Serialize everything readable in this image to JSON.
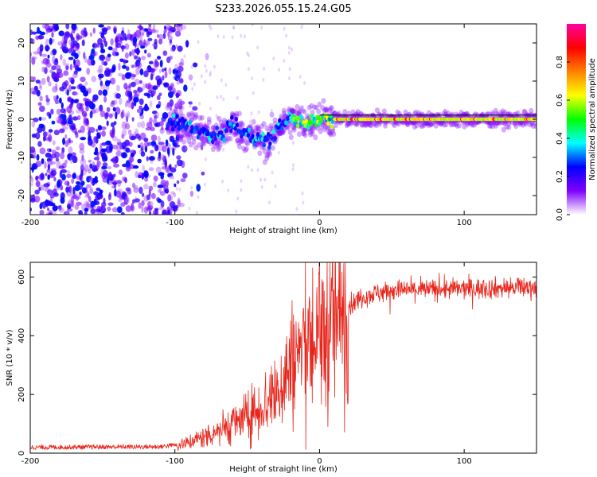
{
  "title": "S233.2026.055.15.24.G05",
  "chart_data": [
    {
      "type": "heatmap",
      "xlabel": "Height of straight line (km)",
      "ylabel": "Frequency (Hz)",
      "xlim": [
        -200,
        150
      ],
      "ylim": [
        -25,
        25
      ],
      "x_ticks": [
        -200,
        -100,
        0,
        100
      ],
      "y_ticks": [
        -20,
        -10,
        0,
        10,
        20
      ],
      "colorbar": {
        "label": "Normalized spectral amplitude",
        "range": [
          0,
          1
        ],
        "ticks": [
          "0.0",
          "0.2",
          "0.4",
          "0.6",
          "0.8"
        ],
        "tick_values": [
          0.0,
          0.2,
          0.4,
          0.6,
          0.8
        ],
        "colors": [
          "#ffffff",
          "#7f00ff",
          "#0000ff",
          "#00ffff",
          "#00ff00",
          "#ffff00",
          "#ff8000",
          "#ff0000",
          "#ff00a0"
        ]
      },
      "ridge": [
        {
          "x": -100,
          "y": -1
        },
        {
          "x": -90,
          "y": -2
        },
        {
          "x": -80,
          "y": -3.5
        },
        {
          "x": -70,
          "y": -5
        },
        {
          "x": -60,
          "y": -1
        },
        {
          "x": -55,
          "y": -3
        },
        {
          "x": -45,
          "y": -5
        },
        {
          "x": -35,
          "y": -6
        },
        {
          "x": -28,
          "y": -2
        },
        {
          "x": -20,
          "y": 0
        },
        {
          "x": -10,
          "y": -1
        },
        {
          "x": 0,
          "y": 0.5
        },
        {
          "x": 10,
          "y": 0
        },
        {
          "x": 150,
          "y": 0
        }
      ]
    },
    {
      "type": "line",
      "xlabel": "Height of straight line (km)",
      "ylabel": "SNR (10 * v/v)",
      "xlim": [
        -200,
        150
      ],
      "ylim": [
        0,
        650
      ],
      "x_ticks": [
        -200,
        -100,
        0,
        100
      ],
      "y_ticks": [
        0,
        200,
        400,
        600
      ],
      "color": "#e8261c",
      "profile": [
        {
          "x": -200,
          "y": 18
        },
        {
          "x": -110,
          "y": 20
        },
        {
          "x": -95,
          "y": 30
        },
        {
          "x": -80,
          "y": 55
        },
        {
          "x": -65,
          "y": 90
        },
        {
          "x": -50,
          "y": 120
        },
        {
          "x": -40,
          "y": 160
        },
        {
          "x": -30,
          "y": 200
        },
        {
          "x": -20,
          "y": 300
        },
        {
          "x": -10,
          "y": 370
        },
        {
          "x": 0,
          "y": 390
        },
        {
          "x": 10,
          "y": 440
        },
        {
          "x": 20,
          "y": 500
        },
        {
          "x": 30,
          "y": 535
        },
        {
          "x": 50,
          "y": 555
        },
        {
          "x": 150,
          "y": 565
        }
      ]
    }
  ]
}
